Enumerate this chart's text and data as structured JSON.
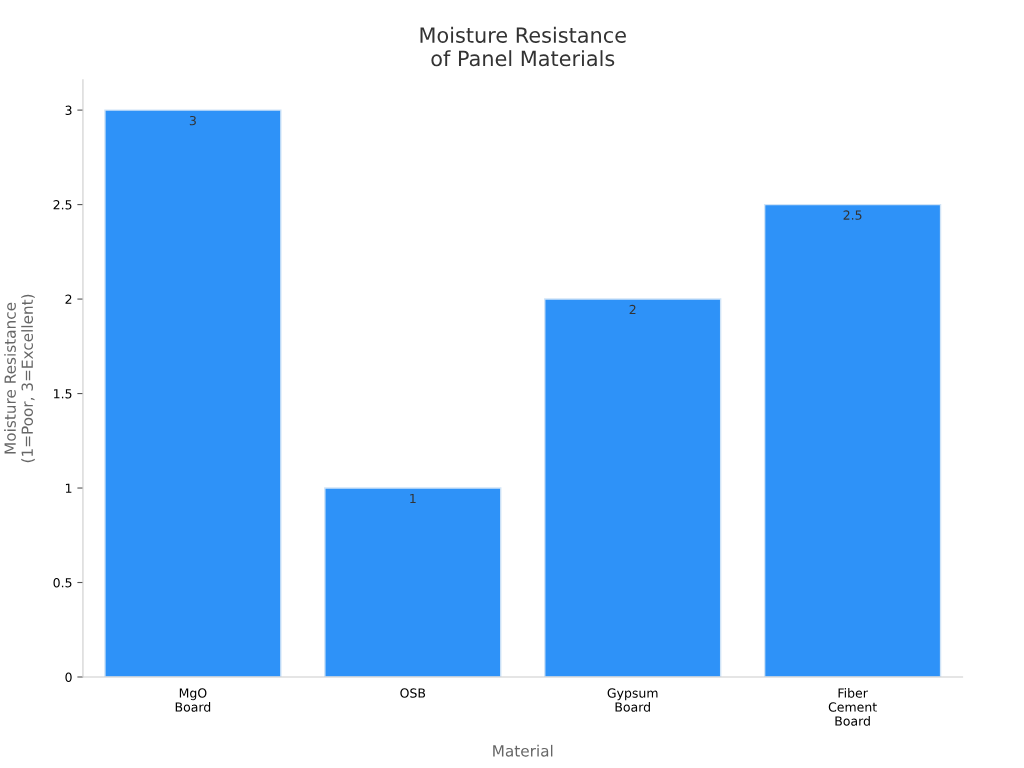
{
  "chart_data": {
    "type": "bar",
    "title": "Moisture Resistance\nof Panel Materials",
    "xlabel": "Material",
    "ylabel": "Moisture Resistance\n(1=Poor, 3=Excellent)",
    "categories": [
      "MgO\nBoard",
      "OSB",
      "Gypsum\nBoard",
      "Fiber\nCement\nBoard"
    ],
    "values": [
      3,
      1,
      2,
      2.5
    ],
    "color": "#2e92f8",
    "ylim": [
      0,
      3.16
    ],
    "yticks": [
      0,
      0.5,
      1,
      1.5,
      2,
      2.5,
      3
    ],
    "data_labels": true,
    "grid": false,
    "legend": false
  }
}
